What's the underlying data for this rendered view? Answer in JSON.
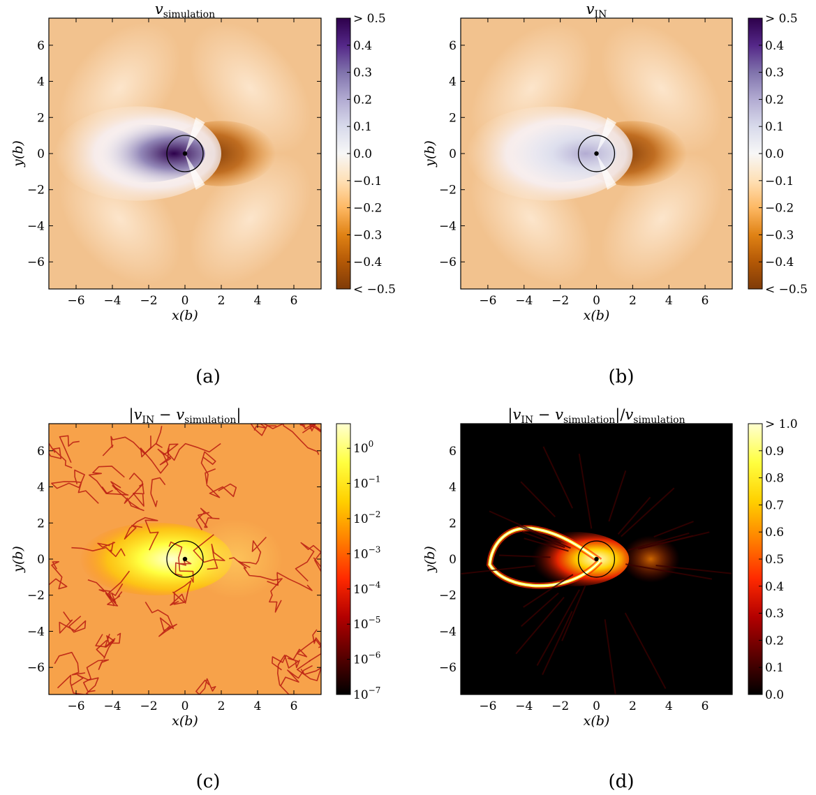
{
  "chart_data": [
    {
      "type": "heatmap",
      "panel": "(a)",
      "title": "v_simulation",
      "xlabel": "x(b)",
      "ylabel": "y(b)",
      "xlim": [
        -7.5,
        7.5
      ],
      "ylim": [
        -7.5,
        7.5
      ],
      "xticks": [
        "−6",
        "−4",
        "−2",
        "0",
        "2",
        "4",
        "6"
      ],
      "yticks": [
        "−6",
        "−4",
        "−2",
        "0",
        "2",
        "4",
        "6"
      ],
      "colorbar": {
        "scale": "linear",
        "range": [
          -0.5,
          0.5
        ],
        "ticks": [
          "< −0.5",
          "−0.4",
          "−0.3",
          "−0.2",
          "−0.1",
          "0.0",
          "0.1",
          "0.2",
          "0.3",
          "0.4",
          "> 0.5"
        ],
        "colormap": [
          "#7f3b08",
          "#b35806",
          "#e08214",
          "#fdb863",
          "#fee0b6",
          "#f7f7f7",
          "#d8daeb",
          "#b2abd2",
          "#8073ac",
          "#542788",
          "#2d004b"
        ]
      },
      "circle_radius": 1.0
    },
    {
      "type": "heatmap",
      "panel": "(b)",
      "title": "v_IN",
      "xlabel": "x(b)",
      "ylabel": "y(b)",
      "xlim": [
        -7.5,
        7.5
      ],
      "ylim": [
        -7.5,
        7.5
      ],
      "xticks": [
        "−6",
        "−4",
        "−2",
        "0",
        "2",
        "4",
        "6"
      ],
      "yticks": [
        "−6",
        "−4",
        "−2",
        "0",
        "2",
        "4",
        "6"
      ],
      "colorbar": {
        "scale": "linear",
        "range": [
          -0.5,
          0.5
        ],
        "ticks": [
          "< −0.5",
          "−0.4",
          "−0.3",
          "−0.2",
          "−0.1",
          "0.0",
          "0.1",
          "0.2",
          "0.3",
          "0.4",
          "> 0.5"
        ],
        "colormap": [
          "#7f3b08",
          "#b35806",
          "#e08214",
          "#fdb863",
          "#fee0b6",
          "#f7f7f7",
          "#d8daeb",
          "#b2abd2",
          "#8073ac",
          "#542788",
          "#2d004b"
        ]
      },
      "circle_radius": 1.0
    },
    {
      "type": "heatmap",
      "panel": "(c)",
      "title": "|v_IN − v_simulation|",
      "xlabel": "x(b)",
      "ylabel": "y(b)",
      "xlim": [
        -7.5,
        7.5
      ],
      "ylim": [
        -7.5,
        7.5
      ],
      "xticks": [
        "−6",
        "−4",
        "−2",
        "0",
        "2",
        "4",
        "6"
      ],
      "yticks": [
        "−6",
        "−4",
        "−2",
        "0",
        "2",
        "4",
        "6"
      ],
      "colorbar": {
        "scale": "log",
        "range": [
          1e-07,
          5
        ],
        "ticks": [
          "10^-7",
          "10^-6",
          "10^-5",
          "10^-4",
          "10^-3",
          "10^-2",
          "10^-1",
          "10^0"
        ],
        "colormap": [
          "#000000",
          "#5a0000",
          "#b30000",
          "#ff2a00",
          "#ff8000",
          "#ffd000",
          "#ffff40",
          "#ffffd0"
        ]
      },
      "circle_radius": 1.0
    },
    {
      "type": "heatmap",
      "panel": "(d)",
      "title": "|v_IN − v_simulation|/v_simulation",
      "xlabel": "x(b)",
      "ylabel": "y(b)",
      "xlim": [
        -7.5,
        7.5
      ],
      "ylim": [
        -7.5,
        7.5
      ],
      "xticks": [
        "−6",
        "−4",
        "−2",
        "0",
        "2",
        "4",
        "6"
      ],
      "yticks": [
        "−6",
        "−4",
        "−2",
        "0",
        "2",
        "4",
        "6"
      ],
      "colorbar": {
        "scale": "linear",
        "range": [
          0.0,
          1.0
        ],
        "ticks": [
          "0.0",
          "0.1",
          "0.2",
          "0.3",
          "0.4",
          "0.5",
          "0.6",
          "0.7",
          "0.8",
          "0.9",
          "> 1.0"
        ],
        "colormap": [
          "#000000",
          "#5a0000",
          "#b30000",
          "#ff2a00",
          "#ff8000",
          "#ffd000",
          "#ffff40",
          "#ffffd0"
        ]
      },
      "circle_radius": 1.0
    }
  ]
}
